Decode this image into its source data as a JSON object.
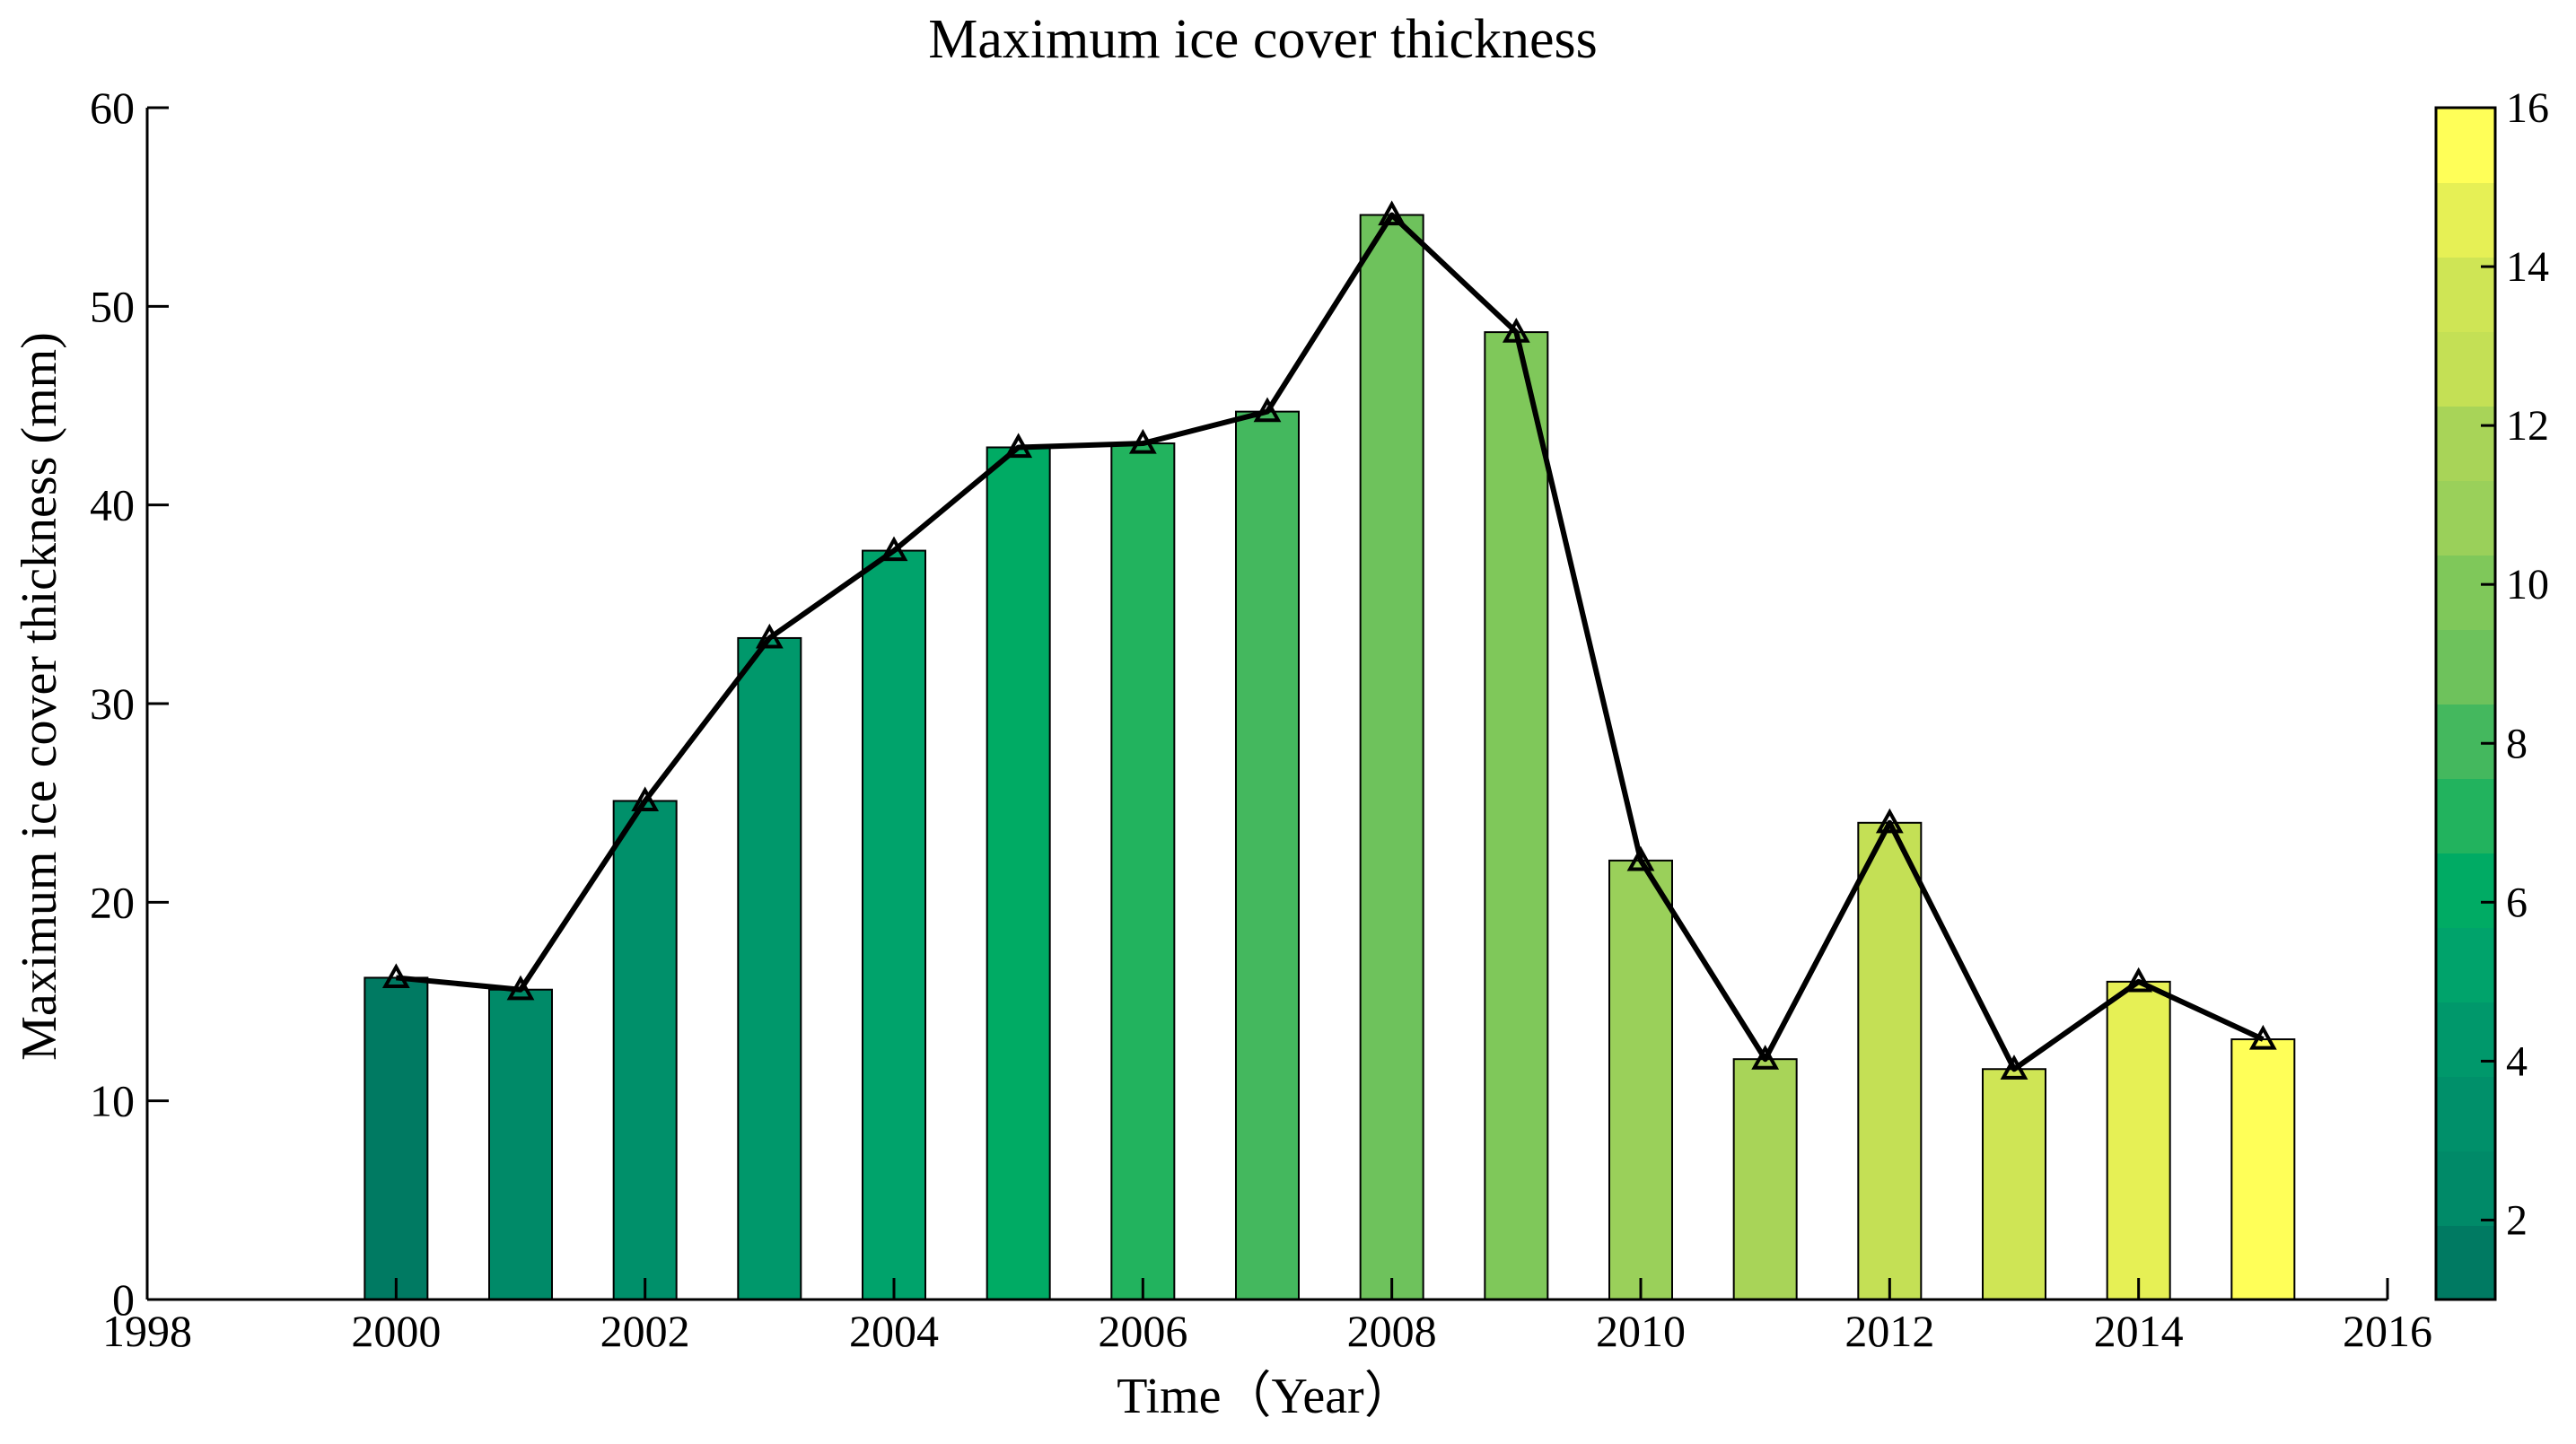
{
  "chart_data": {
    "type": "bar",
    "title": "Maximum ice cover thickness",
    "xlabel": "Time（Year）",
    "ylabel": "Maximum ice cover thickness (mm)",
    "xlim": [
      1998,
      2016
    ],
    "ylim": [
      0,
      60
    ],
    "x_ticks": [
      "1998",
      "2000",
      "2002",
      "2004",
      "2006",
      "2008",
      "2010",
      "2012",
      "2014",
      "2016"
    ],
    "y_ticks": [
      "0",
      "10",
      "20",
      "30",
      "40",
      "50",
      "60"
    ],
    "x": [
      2000,
      2001,
      2002,
      2003,
      2004,
      2005,
      2006,
      2007,
      2008,
      2009,
      2010,
      2011,
      2012,
      2013,
      2014,
      2015
    ],
    "values": [
      16.2,
      15.6,
      25.1,
      33.3,
      37.7,
      42.9,
      43.1,
      44.7,
      54.6,
      48.7,
      22.1,
      12.1,
      24.0,
      11.6,
      16.0,
      13.1
    ],
    "overlay_line": {
      "type": "line",
      "marker": "triangle",
      "color": "#000000",
      "values": [
        16.2,
        15.6,
        25.1,
        33.3,
        37.7,
        42.9,
        43.1,
        44.7,
        54.6,
        48.7,
        22.1,
        12.1,
        24.0,
        11.6,
        16.0,
        13.1
      ]
    },
    "bar_colors": [
      "#007a62",
      "#008a68",
      "#00906a",
      "#00986b",
      "#00a36b",
      "#00ab64",
      "#22b35e",
      "#44b85e",
      "#6ec25c",
      "#7fc85a",
      "#9ad05a",
      "#a8d458",
      "#c4e055",
      "#cfe555",
      "#e6f055",
      "#ffff58"
    ],
    "colorbar": {
      "range": [
        1,
        16
      ],
      "ticks": [
        "2",
        "4",
        "6",
        "8",
        "10",
        "12",
        "14",
        "16"
      ],
      "colors": [
        "#007a62",
        "#008a68",
        "#00906a",
        "#00986b",
        "#00a36b",
        "#00ab64",
        "#22b35e",
        "#44b85e",
        "#6ec25c",
        "#7fc85a",
        "#9ad05a",
        "#a8d458",
        "#c4e055",
        "#cfe555",
        "#e6f055",
        "#ffff58"
      ]
    },
    "grid": false,
    "legend": "none"
  }
}
